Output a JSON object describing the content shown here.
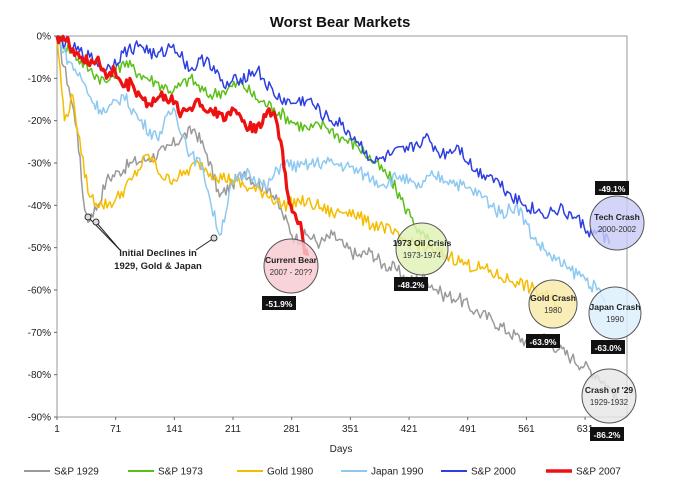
{
  "chart_data": {
    "type": "line",
    "title": "Worst Bear Markets",
    "xlabel": "Days",
    "ylabel": "",
    "xlim": [
      1,
      681
    ],
    "ylim": [
      -90,
      0
    ],
    "x_ticks": [
      1,
      71,
      141,
      211,
      281,
      351,
      421,
      491,
      561,
      631
    ],
    "y_ticks": [
      0,
      -10,
      -20,
      -30,
      -40,
      -50,
      -60,
      -70,
      -80,
      -90
    ],
    "y_tick_labels": [
      "0%",
      "-10%",
      "-20%",
      "-30%",
      "-40%",
      "-50%",
      "-60%",
      "-70%",
      "-80%",
      "-90%"
    ],
    "grid": false,
    "legend_position": "bottom",
    "series": [
      {
        "name": "S&P 1929",
        "color": "#9a9a9a",
        "width": 1.5,
        "x": [
          1,
          15,
          25,
          32,
          38,
          42,
          50,
          60,
          75,
          90,
          110,
          130,
          150,
          165,
          180,
          195,
          210,
          225,
          240,
          255,
          270,
          285,
          300,
          315,
          330,
          345,
          360,
          375,
          390,
          405,
          420,
          440,
          460,
          480,
          500,
          520,
          540,
          560,
          580,
          600,
          615,
          630,
          645,
          660,
          671
        ],
        "values": [
          0,
          -12,
          -22,
          -38,
          -44,
          -42,
          -40,
          -34,
          -32,
          -30,
          -29,
          -27,
          -24,
          -22,
          -28,
          -38,
          -35,
          -32,
          -35,
          -36,
          -42,
          -48,
          -47,
          -49,
          -47,
          -50,
          -52,
          -51,
          -54,
          -55,
          -58,
          -57,
          -61,
          -62,
          -65,
          -67,
          -70,
          -72,
          -71,
          -74,
          -76,
          -78,
          -80,
          -83,
          -86.2
        ]
      },
      {
        "name": "S&P 1973",
        "color": "#5bbf1a",
        "width": 1.5,
        "x": [
          1,
          20,
          40,
          60,
          80,
          100,
          120,
          140,
          160,
          180,
          200,
          220,
          240,
          260,
          280,
          300,
          320,
          340,
          360,
          380,
          400,
          415,
          425,
          435,
          445
        ],
        "values": [
          0,
          -4,
          -8,
          -11,
          -6,
          -9,
          -11,
          -13,
          -10,
          -14,
          -13,
          -11,
          -15,
          -17,
          -20,
          -22,
          -21,
          -24,
          -26,
          -30,
          -34,
          -40,
          -43,
          -47,
          -48.2
        ]
      },
      {
        "name": "Gold 1980",
        "color": "#f5bc00",
        "width": 1.5,
        "x": [
          1,
          10,
          20,
          30,
          40,
          55,
          70,
          90,
          110,
          130,
          150,
          170,
          190,
          210,
          230,
          250,
          270,
          290,
          310,
          330,
          350,
          370,
          390,
          410,
          430,
          450,
          470,
          490,
          510,
          530,
          550,
          570,
          590,
          600
        ],
        "values": [
          0,
          -20,
          -14,
          -28,
          -38,
          -40,
          -39,
          -34,
          -28,
          -34,
          -33,
          -30,
          -33,
          -34,
          -36,
          -37,
          -40,
          -39,
          -40,
          -42,
          -41,
          -44,
          -45,
          -48,
          -49,
          -51,
          -52,
          -54,
          -55,
          -57,
          -58,
          -60,
          -62,
          -63.9
        ]
      },
      {
        "name": "Japan 1990",
        "color": "#8ec9f0",
        "width": 1.5,
        "x": [
          1,
          15,
          30,
          45,
          60,
          80,
          100,
          120,
          140,
          160,
          175,
          185,
          195,
          210,
          230,
          250,
          270,
          290,
          310,
          330,
          350,
          370,
          390,
          410,
          430,
          450,
          470,
          490,
          510,
          530,
          550,
          570,
          590,
          610,
          630,
          645,
          655
        ],
        "values": [
          0,
          -6,
          -10,
          -16,
          -18,
          -14,
          -20,
          -24,
          -17,
          -28,
          -31,
          -40,
          -47,
          -35,
          -32,
          -36,
          -30,
          -31,
          -30,
          -30,
          -31,
          -33,
          -35,
          -33,
          -36,
          -33,
          -34,
          -36,
          -38,
          -42,
          -40,
          -48,
          -52,
          -55,
          -57,
          -60,
          -63
        ]
      },
      {
        "name": "S&P 2000",
        "color": "#2d3fe0",
        "width": 1.5,
        "x": [
          1,
          20,
          40,
          60,
          80,
          100,
          120,
          140,
          160,
          180,
          200,
          220,
          240,
          260,
          280,
          300,
          320,
          340,
          360,
          380,
          400,
          420,
          440,
          460,
          480,
          500,
          520,
          540,
          560,
          580,
          600,
          620,
          640,
          650,
          660
        ],
        "values": [
          0,
          -3,
          -5,
          -8,
          -4,
          -2,
          -5,
          -2,
          -8,
          -5,
          -12,
          -10,
          -8,
          -14,
          -16,
          -15,
          -19,
          -21,
          -25,
          -30,
          -28,
          -27,
          -24,
          -28,
          -26,
          -32,
          -33,
          -37,
          -40,
          -42,
          -41,
          -43,
          -47,
          -46,
          -49.1
        ]
      },
      {
        "name": "S&P 2007",
        "color": "#ee1111",
        "width": 3.2,
        "x": [
          1,
          10,
          20,
          30,
          40,
          50,
          60,
          70,
          80,
          90,
          100,
          110,
          120,
          130,
          140,
          150,
          160,
          170,
          180,
          190,
          200,
          210,
          220,
          230,
          240,
          250,
          260,
          270,
          275,
          280,
          285,
          290,
          295,
          300
        ],
        "values": [
          0,
          -1,
          -3,
          -5,
          -7,
          -5,
          -10,
          -8,
          -12,
          -11,
          -14,
          -16,
          -15,
          -14,
          -16,
          -18,
          -17,
          -15,
          -18,
          -17,
          -20,
          -17,
          -19,
          -22,
          -21,
          -19,
          -18,
          -27,
          -36,
          -40,
          -42,
          -44,
          -49,
          -51.9
        ]
      }
    ],
    "annotations": [
      {
        "title": "Current Bear",
        "sub": "2007 - 20??",
        "badge": "-51.9%",
        "color": "#f6c9cf"
      },
      {
        "title": "1973 Oil Crisis",
        "sub": "1973-1974",
        "badge": "-48.2%",
        "color": "#e1f0b6"
      },
      {
        "title": "Gold Crash",
        "sub": "1980",
        "badge": "-63.9%",
        "color": "#f8eaa8"
      },
      {
        "title": "Japan Crash",
        "sub": "1990",
        "badge": "-63.0%",
        "color": "#dceffc"
      },
      {
        "title": "Tech Crash",
        "sub": "2000-2002",
        "badge": "-49.1%",
        "color": "#c9ccf6"
      },
      {
        "title": "Crash of '29",
        "sub": "1929-1932",
        "badge": "-86.2%",
        "color": "#e6e6e6"
      }
    ],
    "note_lines": [
      "Initial Declines in",
      "1929, Gold & Japan"
    ]
  }
}
